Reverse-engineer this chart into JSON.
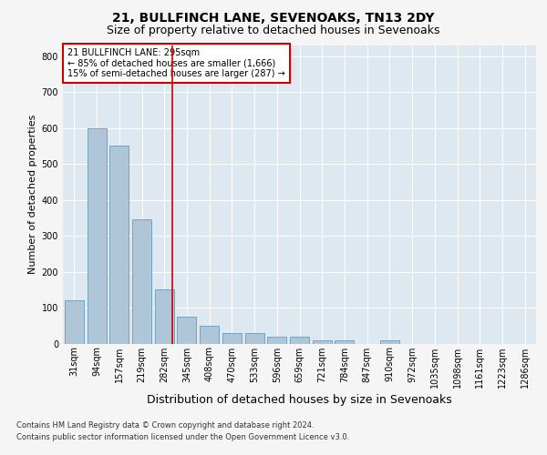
{
  "title1": "21, BULLFINCH LANE, SEVENOAKS, TN13 2DY",
  "title2": "Size of property relative to detached houses in Sevenoaks",
  "xlabel": "Distribution of detached houses by size in Sevenoaks",
  "ylabel": "Number of detached properties",
  "footer1": "Contains HM Land Registry data © Crown copyright and database right 2024.",
  "footer2": "Contains public sector information licensed under the Open Government Licence v3.0.",
  "categories": [
    "31sqm",
    "94sqm",
    "157sqm",
    "219sqm",
    "282sqm",
    "345sqm",
    "408sqm",
    "470sqm",
    "533sqm",
    "596sqm",
    "659sqm",
    "721sqm",
    "784sqm",
    "847sqm",
    "910sqm",
    "972sqm",
    "1035sqm",
    "1098sqm",
    "1161sqm",
    "1223sqm",
    "1286sqm"
  ],
  "values": [
    120,
    600,
    550,
    345,
    150,
    75,
    50,
    30,
    30,
    20,
    20,
    10,
    10,
    0,
    10,
    0,
    0,
    0,
    0,
    0,
    0
  ],
  "bar_color": "#aec6d8",
  "bar_edge_color": "#6b9ab8",
  "vline_color": "#cc0000",
  "vline_index": 4.35,
  "annotation_text": "21 BULLFINCH LANE: 295sqm\n← 85% of detached houses are smaller (1,666)\n15% of semi-detached houses are larger (287) →",
  "annotation_box_facecolor": "#ffffff",
  "annotation_box_edgecolor": "#cc0000",
  "ylim": [
    0,
    830
  ],
  "yticks": [
    0,
    100,
    200,
    300,
    400,
    500,
    600,
    700,
    800
  ],
  "background_color": "#dde8f0",
  "grid_color": "#ffffff",
  "fig_facecolor": "#f5f5f5",
  "title1_fontsize": 10,
  "title2_fontsize": 9,
  "xlabel_fontsize": 9,
  "ylabel_fontsize": 8,
  "tick_fontsize": 7,
  "annot_fontsize": 7,
  "footer_fontsize": 6
}
